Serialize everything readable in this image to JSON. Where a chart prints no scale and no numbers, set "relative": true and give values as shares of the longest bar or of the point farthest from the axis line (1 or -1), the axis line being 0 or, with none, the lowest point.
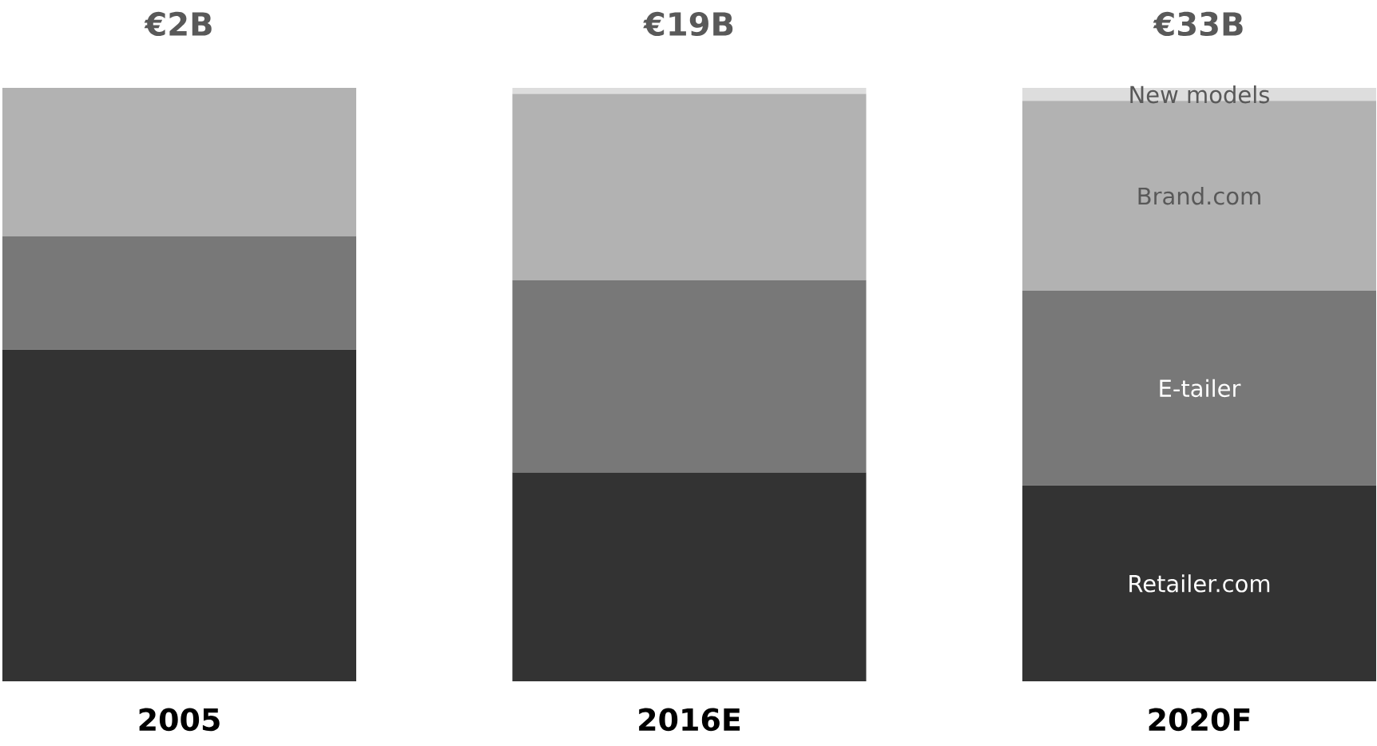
{
  "chart_data": {
    "type": "bar",
    "stacked": true,
    "relative": true,
    "categories": [
      "2005",
      "2016E",
      "2020F"
    ],
    "series": [
      {
        "name": "Retailer.com",
        "color": "#333333",
        "values": [
          0.559,
          0.352,
          0.33
        ]
      },
      {
        "name": "E-tailer",
        "color": "#787878",
        "values": [
          0.191,
          0.324,
          0.328
        ]
      },
      {
        "name": "Brand.com",
        "color": "#b2b2b2",
        "values": [
          0.25,
          0.314,
          0.32
        ]
      },
      {
        "name": "New models",
        "color": "#dddddd",
        "values": [
          0,
          0.01,
          0.022
        ]
      }
    ],
    "annotations": [
      {
        "text": "€2B",
        "x": "2005",
        "y": 1
      },
      {
        "text": "€19B",
        "x": "2016E",
        "y": 1
      },
      {
        "text": "€33B",
        "x": "2020F",
        "y": 1
      }
    ]
  }
}
